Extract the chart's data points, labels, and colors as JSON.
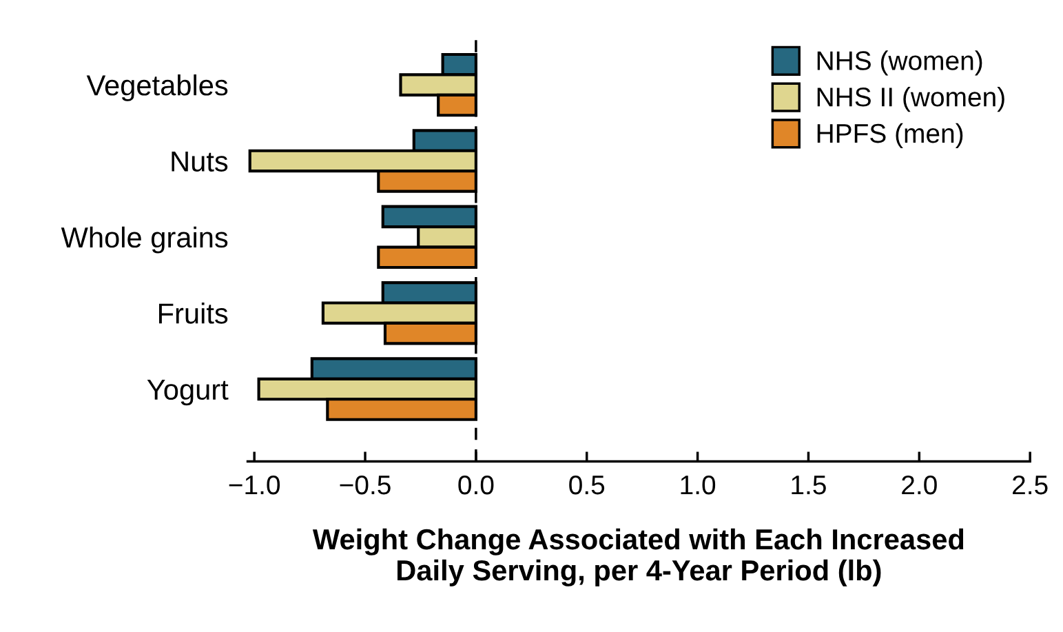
{
  "chart_data": {
    "type": "bar",
    "orientation": "horizontal",
    "categories": [
      "Vegetables",
      "Nuts",
      "Whole grains",
      "Fruits",
      "Yogurt"
    ],
    "series": [
      {
        "name": "NHS (women)",
        "color": "#266880",
        "values": [
          -0.15,
          -0.28,
          -0.42,
          -0.42,
          -0.74
        ]
      },
      {
        "name": "NHS II (women)",
        "color": "#dfd68f",
        "values": [
          -0.34,
          -1.02,
          -0.26,
          -0.69,
          -0.98
        ]
      },
      {
        "name": "HPFS (men)",
        "color": "#e08628",
        "values": [
          -0.17,
          -0.44,
          -0.44,
          -0.41,
          -0.67
        ]
      }
    ],
    "xlim": [
      -1.03,
      2.5
    ],
    "xticks": [
      {
        "value": -1.0,
        "label": "−1.0"
      },
      {
        "value": -0.5,
        "label": "−0.5"
      },
      {
        "value": 0.0,
        "label": "0.0"
      },
      {
        "value": 0.5,
        "label": "0.5"
      },
      {
        "value": 1.0,
        "label": "1.0"
      },
      {
        "value": 1.5,
        "label": "1.5"
      },
      {
        "value": 2.0,
        "label": "2.0"
      },
      {
        "value": 2.5,
        "label": "2.5"
      }
    ],
    "xlabel": "Weight Change Associated with Each Increased\nDaily Serving, per 4-Year Period (lb)",
    "ref_lines": [
      {
        "axis": "x",
        "value": 0,
        "color": "#000000",
        "line_style": "dashed"
      }
    ],
    "legend": "top right",
    "grid": false
  }
}
